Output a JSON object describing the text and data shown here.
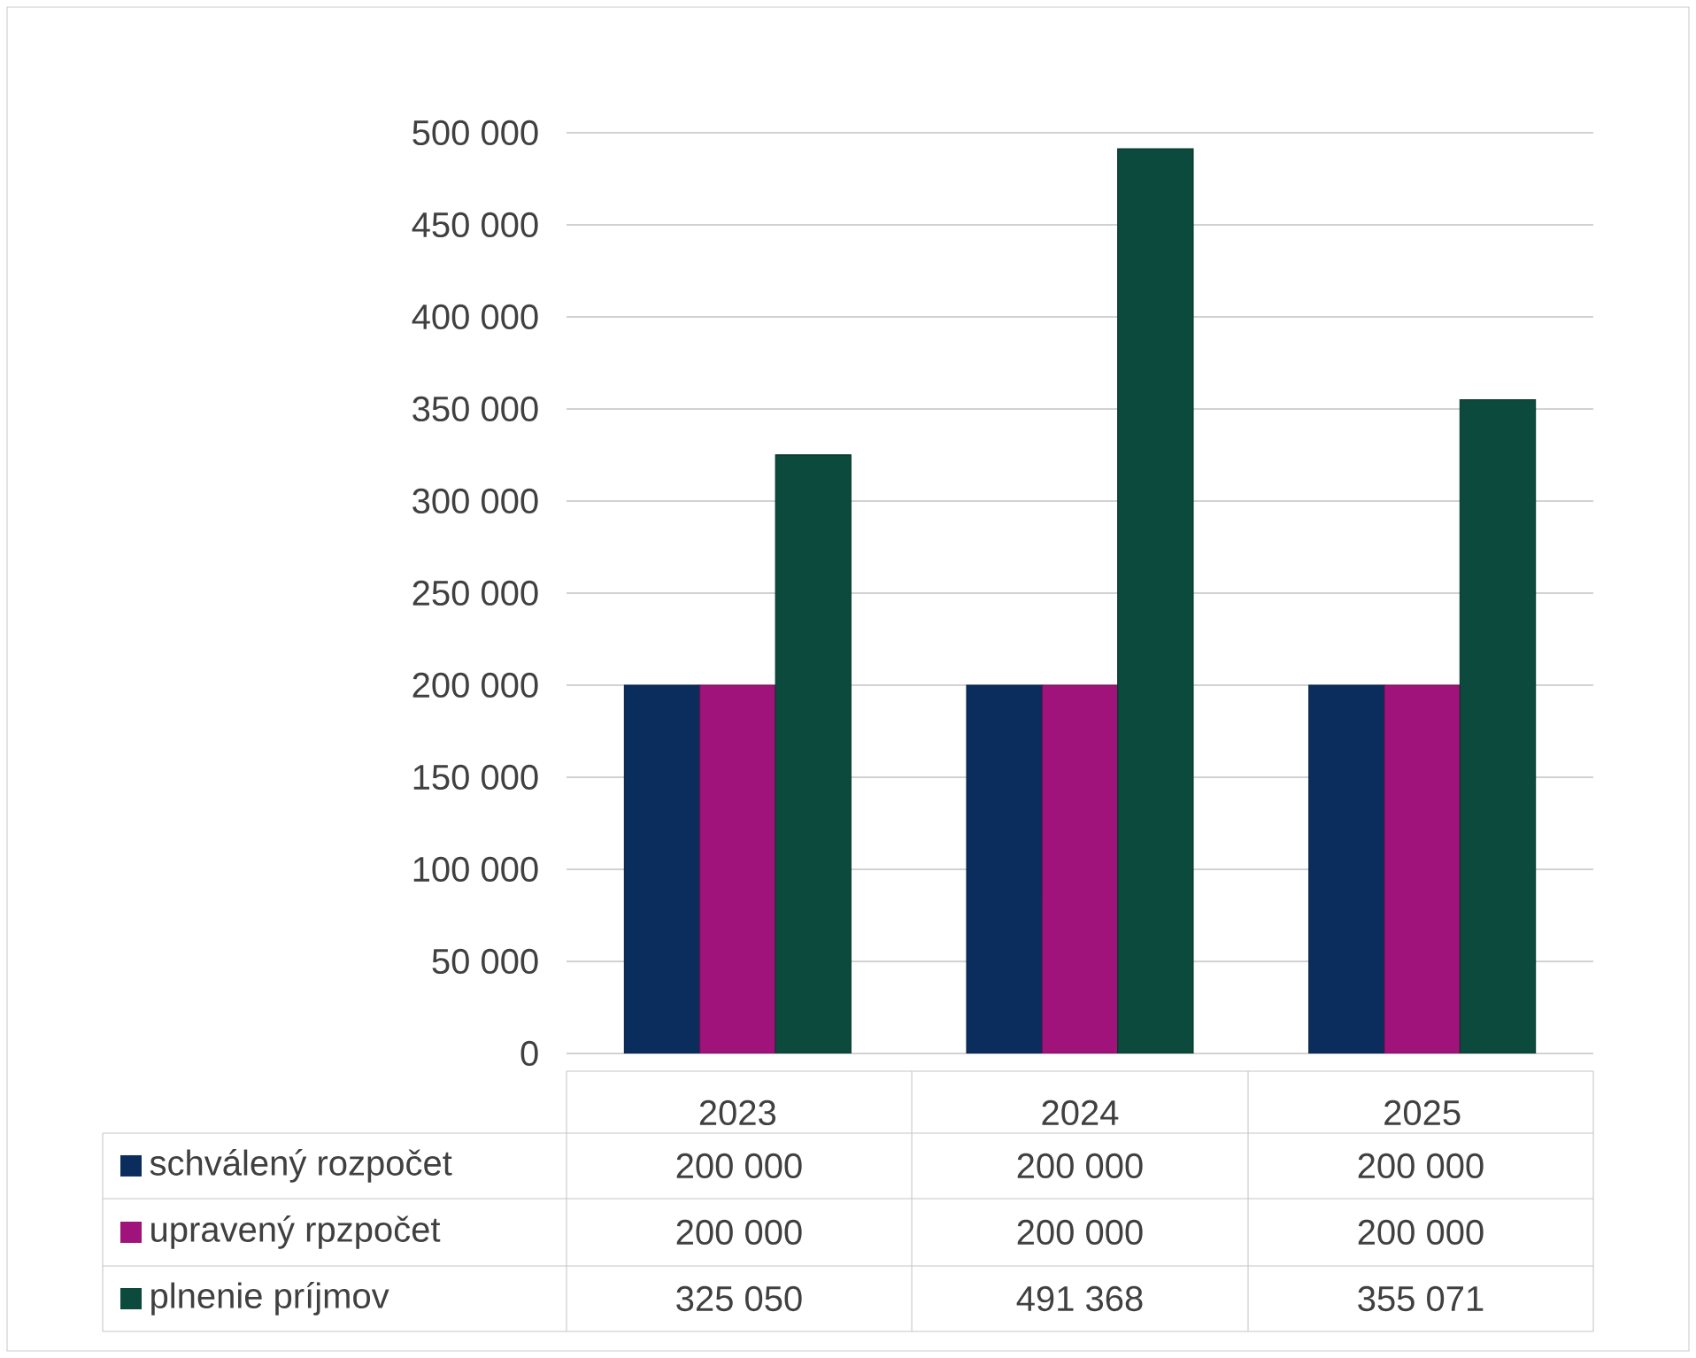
{
  "chart_data": {
    "type": "bar",
    "categories": [
      "2023",
      "2024",
      "2025"
    ],
    "series": [
      {
        "name": "schválený rozpočet",
        "color": "#0a2d5e",
        "values": [
          200000,
          200000,
          200000
        ],
        "value_labels": [
          "200 000",
          "200 000",
          "200 000"
        ]
      },
      {
        "name": "upravený rpzpočet",
        "color": "#a0137a",
        "values": [
          200000,
          200000,
          200000
        ],
        "value_labels": [
          "200 000",
          "200 000",
          "200 000"
        ]
      },
      {
        "name": "plnenie príjmov",
        "color": "#0b4a3c",
        "values": [
          325050,
          491368,
          355071
        ],
        "value_labels": [
          "325 050",
          "491 368",
          "355 071"
        ]
      }
    ],
    "ylim": [
      0,
      500000
    ],
    "yticks": [
      0,
      {
        "value": 50000,
        "label": "50 000"
      },
      {
        "value": 100000,
        "label": "100 000"
      },
      {
        "value": 150000,
        "label": "150 000"
      },
      {
        "value": 200000,
        "label": "200 000"
      },
      {
        "value": 250000,
        "label": "250 000"
      },
      {
        "value": 300000,
        "label": "300 000"
      },
      {
        "value": 350000,
        "label": "350 000"
      },
      {
        "value": 400000,
        "label": "400 000"
      },
      {
        "value": 450000,
        "label": "450 000"
      },
      {
        "value": 500000,
        "label": "500 000"
      }
    ],
    "grid": "y",
    "legend": "bottom"
  }
}
